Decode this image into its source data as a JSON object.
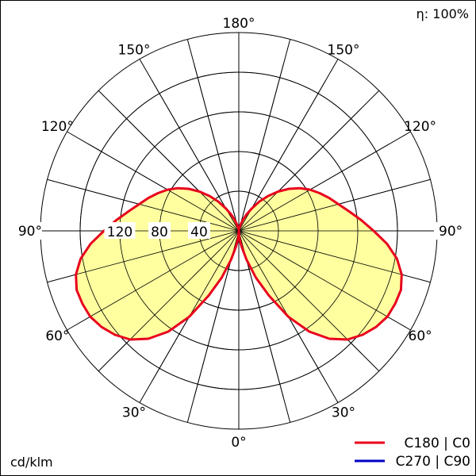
{
  "chart_data": {
    "type": "polar",
    "efficiency_label": "η: 100%",
    "unit_label": "cd/klm",
    "radial_ticks": [
      40,
      80,
      120
    ],
    "radial_max": 200,
    "angle_labels": [
      {
        "text": "180°",
        "angle": 180,
        "side": "center"
      },
      {
        "text": "150°",
        "angle": 150,
        "side": "left"
      },
      {
        "text": "150°",
        "angle": 150,
        "side": "right"
      },
      {
        "text": "120°",
        "angle": 120,
        "side": "left"
      },
      {
        "text": "120°",
        "angle": 120,
        "side": "right"
      },
      {
        "text": "90°",
        "angle": 90,
        "side": "left"
      },
      {
        "text": "90°",
        "angle": 90,
        "side": "right"
      },
      {
        "text": "60°",
        "angle": 60,
        "side": "left"
      },
      {
        "text": "60°",
        "angle": 60,
        "side": "right"
      },
      {
        "text": "30°",
        "angle": 30,
        "side": "left"
      },
      {
        "text": "30°",
        "angle": 30,
        "side": "right"
      },
      {
        "text": "0°",
        "angle": 0,
        "side": "center"
      }
    ],
    "series": [
      {
        "name": "C180 | C0",
        "color": "#e8001c",
        "fill": "#ffff96",
        "points": [
          [
            0,
            0
          ],
          [
            5,
            8
          ],
          [
            10,
            16
          ],
          [
            15,
            30
          ],
          [
            20,
            50
          ],
          [
            25,
            72
          ],
          [
            30,
            100
          ],
          [
            35,
            124
          ],
          [
            40,
            142
          ],
          [
            45,
            155
          ],
          [
            50,
            163
          ],
          [
            55,
            169
          ],
          [
            60,
            173
          ],
          [
            65,
            174
          ],
          [
            70,
            174
          ],
          [
            75,
            170
          ],
          [
            80,
            162
          ],
          [
            85,
            150
          ],
          [
            90,
            136
          ],
          [
            95,
            124
          ],
          [
            100,
            113
          ],
          [
            105,
            104
          ],
          [
            110,
            97
          ],
          [
            115,
            90
          ],
          [
            120,
            83
          ],
          [
            125,
            75
          ],
          [
            130,
            66
          ],
          [
            135,
            56
          ],
          [
            140,
            46
          ],
          [
            145,
            36
          ],
          [
            150,
            26
          ],
          [
            155,
            18
          ],
          [
            160,
            11
          ],
          [
            165,
            6
          ],
          [
            170,
            3
          ],
          [
            175,
            1
          ],
          [
            180,
            0
          ]
        ]
      },
      {
        "name": "C270 | C90",
        "color": "#0000c8"
      }
    ]
  }
}
